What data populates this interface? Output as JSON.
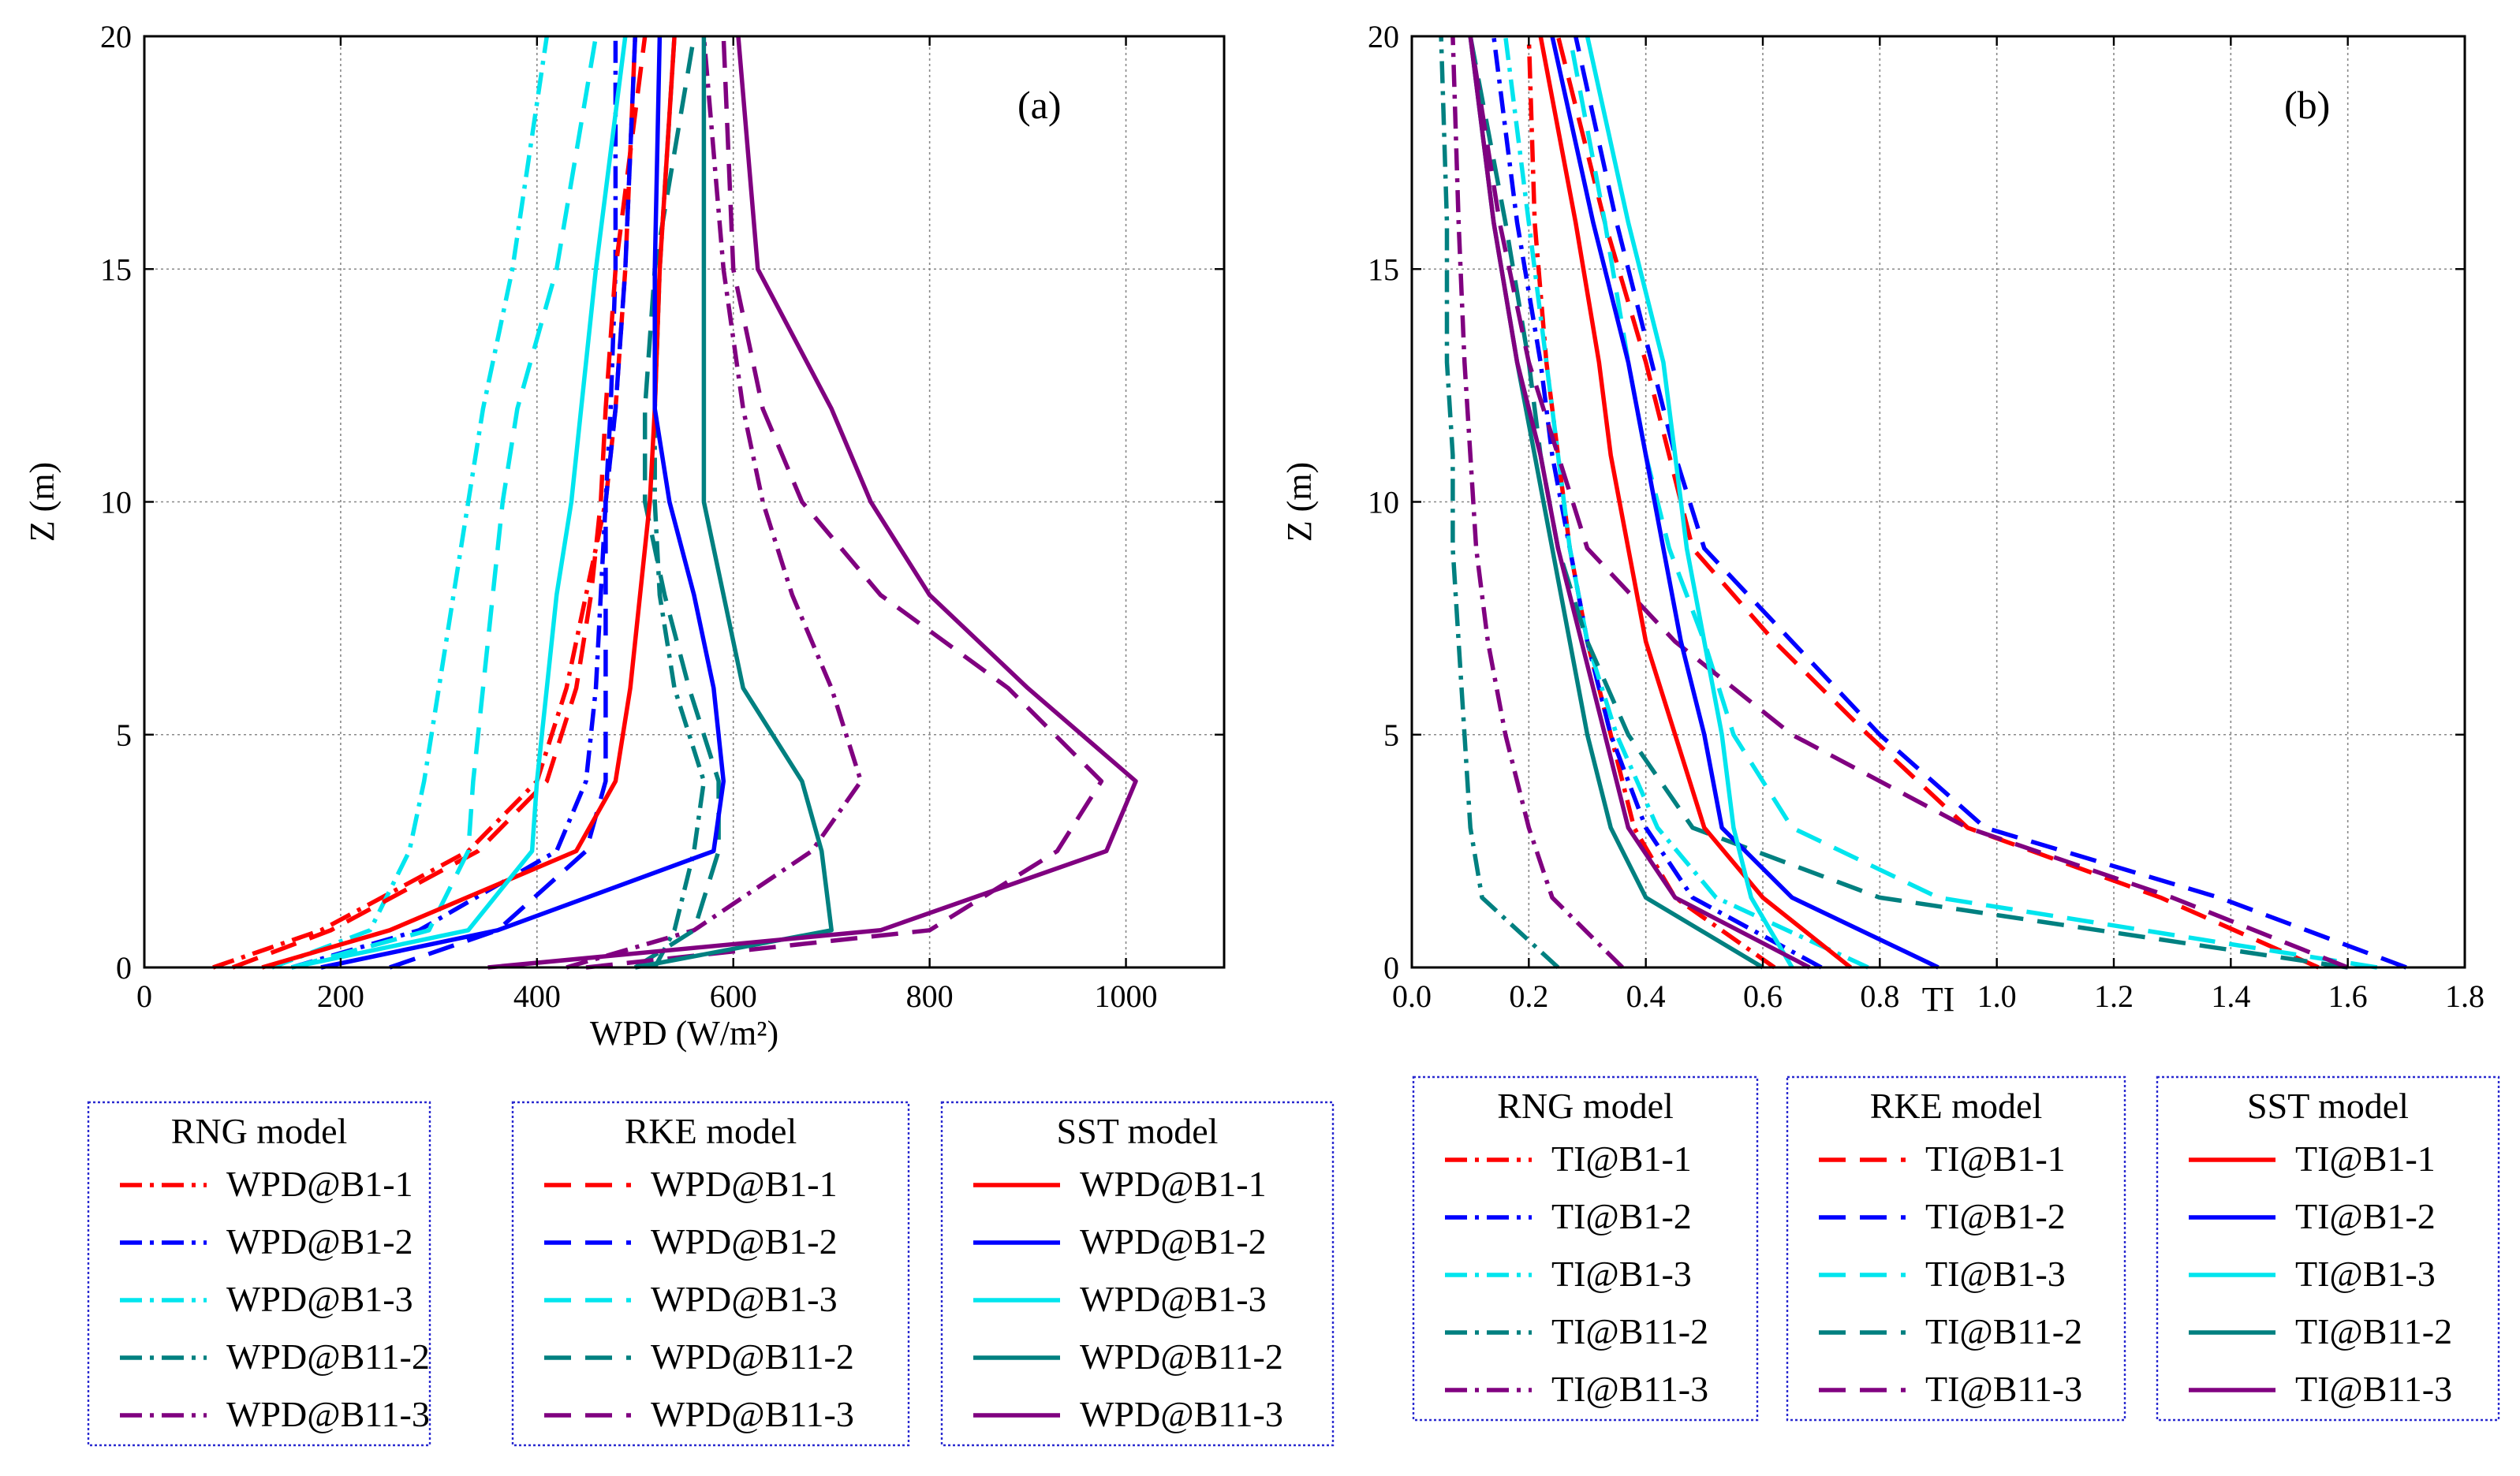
{
  "chart_data": [
    {
      "type": "line",
      "panel_label": "(a)",
      "xlabel": "WPD (W/m²)",
      "ylabel": "Z (m)",
      "xlim": [
        0,
        1100
      ],
      "ylim": [
        0,
        20
      ],
      "xticks": [
        0,
        200,
        400,
        600,
        800,
        1000
      ],
      "yticks": [
        0,
        5,
        10,
        15,
        20
      ],
      "xtick_labels": [
        "0",
        "200",
        "400",
        "600",
        "800",
        "1000"
      ],
      "ytick_labels": [
        "0",
        "5",
        "10",
        "15",
        "20"
      ],
      "grid": true,
      "legend_groups": [
        {
          "title": "RNG model",
          "style": "dashdot",
          "entries": [
            "WPD@B1-1",
            "WPD@B1-2",
            "WPD@B1-3",
            "WPD@B11-2",
            "WPD@B11-3"
          ]
        },
        {
          "title": "RKE model",
          "style": "dash",
          "entries": [
            "WPD@B1-1",
            "WPD@B1-2",
            "WPD@B1-3",
            "WPD@B11-2",
            "WPD@B11-3"
          ]
        },
        {
          "title": "SST model",
          "style": "solid",
          "entries": [
            "WPD@B1-1",
            "WPD@B1-2",
            "WPD@B1-3",
            "WPD@B11-2",
            "WPD@B11-3"
          ]
        }
      ],
      "series": [
        {
          "name": "WPD@B1-1",
          "model": "RNG",
          "color": "#ff0000",
          "style": "dashdot",
          "x": [
            70,
            180,
            330,
            400,
            430,
            450,
            470,
            480,
            490,
            500
          ],
          "z": [
            0,
            0.8,
            2.5,
            4,
            6,
            8,
            10,
            12,
            15,
            20
          ]
        },
        {
          "name": "WPD@B1-2",
          "model": "RNG",
          "color": "#0000ff",
          "style": "dashdot",
          "x": [
            150,
            280,
            420,
            450,
            460,
            465,
            470,
            475,
            480,
            480
          ],
          "z": [
            0,
            0.8,
            2.5,
            4,
            6,
            8,
            10,
            12,
            15,
            20
          ]
        },
        {
          "name": "WPD@B1-3",
          "model": "RNG",
          "color": "#00e5ee",
          "style": "dashdot",
          "x": [
            130,
            230,
            270,
            285,
            300,
            315,
            330,
            345,
            375,
            410
          ],
          "z": [
            0,
            0.8,
            2.5,
            4,
            6,
            8,
            10,
            12,
            15,
            20
          ]
        },
        {
          "name": "WPD@B11-2",
          "model": "RNG",
          "color": "#008080",
          "style": "dashdot",
          "x": [
            520,
            540,
            560,
            570,
            540,
            525,
            520,
            520,
            525,
            540
          ],
          "z": [
            0,
            0.8,
            2.5,
            4,
            6,
            8,
            10,
            12,
            15,
            20
          ]
        },
        {
          "name": "WPD@B11-3",
          "model": "RNG",
          "color": "#800080",
          "style": "dashdot",
          "x": [
            430,
            560,
            680,
            730,
            700,
            660,
            630,
            610,
            590,
            570
          ],
          "z": [
            0,
            0.8,
            2.5,
            4,
            6,
            8,
            10,
            12,
            15,
            20
          ]
        },
        {
          "name": "WPD@B1-1",
          "model": "RKE",
          "color": "#ff0000",
          "style": "dash",
          "x": [
            90,
            190,
            340,
            410,
            440,
            455,
            465,
            470,
            480,
            510
          ],
          "z": [
            0,
            0.8,
            2.5,
            4,
            6,
            8,
            10,
            12,
            15,
            20
          ]
        },
        {
          "name": "WPD@B1-2",
          "model": "RKE",
          "color": "#0000ff",
          "style": "dash",
          "x": [
            250,
            360,
            450,
            470,
            470,
            470,
            470,
            480,
            490,
            500
          ],
          "z": [
            0,
            0.8,
            2.5,
            4,
            6,
            8,
            10,
            12,
            15,
            20
          ]
        },
        {
          "name": "WPD@B1-3",
          "model": "RKE",
          "color": "#00e5ee",
          "style": "dash",
          "x": [
            150,
            290,
            330,
            335,
            345,
            355,
            365,
            380,
            420,
            460
          ],
          "z": [
            0,
            0.8,
            2.5,
            4,
            6,
            8,
            10,
            12,
            15,
            20
          ]
        },
        {
          "name": "WPD@B11-2",
          "model": "RKE",
          "color": "#008080",
          "style": "dash",
          "x": [
            500,
            560,
            585,
            585,
            555,
            530,
            510,
            510,
            520,
            560
          ],
          "z": [
            0,
            0.8,
            2.5,
            4,
            6,
            8,
            10,
            12,
            15,
            20
          ]
        },
        {
          "name": "WPD@B11-3",
          "model": "RKE",
          "color": "#800080",
          "style": "dash",
          "x": [
            450,
            800,
            930,
            975,
            880,
            750,
            670,
            630,
            600,
            590
          ],
          "z": [
            0,
            0.8,
            2.5,
            4,
            6,
            8,
            10,
            12,
            15,
            20
          ]
        },
        {
          "name": "WPD@B1-1",
          "model": "SST",
          "color": "#ff0000",
          "style": "solid",
          "x": [
            120,
            250,
            440,
            480,
            495,
            505,
            515,
            520,
            525,
            540
          ],
          "z": [
            0,
            0.8,
            2.5,
            4,
            6,
            8,
            10,
            12,
            15,
            20
          ]
        },
        {
          "name": "WPD@B1-2",
          "model": "SST",
          "color": "#0000ff",
          "style": "solid",
          "x": [
            180,
            360,
            580,
            590,
            580,
            560,
            535,
            520,
            520,
            525
          ],
          "z": [
            0,
            0.8,
            2.5,
            4,
            6,
            8,
            10,
            12,
            15,
            20
          ]
        },
        {
          "name": "WPD@B1-3",
          "model": "SST",
          "color": "#00e5ee",
          "style": "solid",
          "x": [
            150,
            330,
            395,
            400,
            410,
            420,
            435,
            445,
            460,
            490
          ],
          "z": [
            0,
            0.8,
            2.5,
            4,
            6,
            8,
            10,
            12,
            15,
            20
          ]
        },
        {
          "name": "WPD@B11-2",
          "model": "SST",
          "color": "#008080",
          "style": "solid",
          "x": [
            500,
            700,
            690,
            670,
            610,
            590,
            570,
            570,
            570,
            570
          ],
          "z": [
            0,
            0.8,
            2.5,
            4,
            6,
            8,
            10,
            12,
            15,
            20
          ]
        },
        {
          "name": "WPD@B11-3",
          "model": "SST",
          "color": "#800080",
          "style": "solid",
          "x": [
            350,
            750,
            980,
            1010,
            900,
            800,
            740,
            700,
            625,
            605
          ],
          "z": [
            0,
            0.8,
            2.5,
            4,
            6,
            8,
            10,
            12,
            15,
            20
          ]
        }
      ]
    },
    {
      "type": "line",
      "panel_label": "(b)",
      "xlabel": "TI",
      "ylabel": "Z (m)",
      "xlim": [
        0,
        1.8
      ],
      "ylim": [
        0,
        20
      ],
      "xticks": [
        0,
        0.2,
        0.4,
        0.6,
        0.8,
        1.0,
        1.2,
        1.4,
        1.6,
        1.8
      ],
      "yticks": [
        0,
        5,
        10,
        15,
        20
      ],
      "xtick_labels": [
        "0.0",
        "0.2",
        "0.4",
        "0.6",
        "0.8",
        "1.0",
        "1.2",
        "1.4",
        "1.6",
        "1.8"
      ],
      "ytick_labels": [
        "0",
        "5",
        "10",
        "15",
        "20"
      ],
      "grid": true,
      "legend_groups": [
        {
          "title": "RNG model",
          "style": "dashdot",
          "entries": [
            "TI@B1-1",
            "TI@B1-2",
            "TI@B1-3",
            "TI@B11-2",
            "TI@B11-3"
          ]
        },
        {
          "title": "RKE model",
          "style": "dash",
          "entries": [
            "TI@B1-1",
            "TI@B1-2",
            "TI@B1-3",
            "TI@B11-2",
            "TI@B11-3"
          ]
        },
        {
          "title": "SST model",
          "style": "solid",
          "entries": [
            "TI@B1-1",
            "TI@B1-2",
            "TI@B1-3",
            "TI@B11-2",
            "TI@B11-3"
          ]
        }
      ],
      "series": [
        {
          "name": "TI@B1-1",
          "model": "RNG",
          "color": "#ff0000",
          "style": "dashdot",
          "x": [
            0.62,
            0.45,
            0.38,
            0.34,
            0.3,
            0.27,
            0.25,
            0.23,
            0.21,
            0.2
          ],
          "z": [
            0,
            1.5,
            3,
            5,
            7,
            9,
            11,
            13,
            16,
            20
          ]
        },
        {
          "name": "TI@B1-2",
          "model": "RNG",
          "color": "#0000ff",
          "style": "dashdot",
          "x": [
            0.7,
            0.48,
            0.4,
            0.34,
            0.3,
            0.27,
            0.24,
            0.22,
            0.18,
            0.14
          ],
          "z": [
            0,
            1.5,
            3,
            5,
            7,
            9,
            11,
            13,
            16,
            20
          ]
        },
        {
          "name": "TI@B1-3",
          "model": "RNG",
          "color": "#00e5ee",
          "style": "dashdot",
          "x": [
            0.78,
            0.52,
            0.42,
            0.35,
            0.3,
            0.27,
            0.25,
            0.23,
            0.2,
            0.16
          ],
          "z": [
            0,
            1.5,
            3,
            5,
            7,
            9,
            11,
            13,
            16,
            20
          ]
        },
        {
          "name": "TI@B11-2",
          "model": "RNG",
          "color": "#008080",
          "style": "dashdot",
          "x": [
            0.25,
            0.12,
            0.1,
            0.09,
            0.08,
            0.07,
            0.07,
            0.06,
            0.06,
            0.05
          ],
          "z": [
            0,
            1.5,
            3,
            5,
            7,
            9,
            11,
            13,
            16,
            20
          ]
        },
        {
          "name": "TI@B11-3",
          "model": "RNG",
          "color": "#800080",
          "style": "dashdot",
          "x": [
            0.36,
            0.24,
            0.2,
            0.16,
            0.13,
            0.11,
            0.1,
            0.09,
            0.08,
            0.07
          ],
          "z": [
            0,
            1.5,
            3,
            5,
            7,
            9,
            11,
            13,
            16,
            20
          ]
        },
        {
          "name": "TI@B1-1",
          "model": "RKE",
          "color": "#ff0000",
          "style": "dash",
          "x": [
            1.55,
            1.28,
            0.95,
            0.78,
            0.62,
            0.48,
            0.44,
            0.4,
            0.33,
            0.25
          ],
          "z": [
            0,
            1.5,
            3,
            5,
            7,
            9,
            11,
            13,
            16,
            20
          ]
        },
        {
          "name": "TI@B1-2",
          "model": "RKE",
          "color": "#0000ff",
          "style": "dash",
          "x": [
            1.7,
            1.38,
            0.98,
            0.8,
            0.65,
            0.5,
            0.45,
            0.41,
            0.35,
            0.28
          ],
          "z": [
            0,
            1.5,
            3,
            5,
            7,
            9,
            11,
            13,
            16,
            20
          ]
        },
        {
          "name": "TI@B1-3",
          "model": "RKE",
          "color": "#00e5ee",
          "style": "dash",
          "x": [
            1.65,
            0.9,
            0.65,
            0.55,
            0.5,
            0.44,
            0.4,
            0.37,
            0.33,
            0.27
          ],
          "z": [
            0,
            1.5,
            3,
            5,
            7,
            9,
            11,
            13,
            16,
            20
          ]
        },
        {
          "name": "TI@B11-2",
          "model": "RKE",
          "color": "#008080",
          "style": "dash",
          "x": [
            1.6,
            0.8,
            0.48,
            0.37,
            0.3,
            0.25,
            0.22,
            0.2,
            0.16,
            0.1
          ],
          "z": [
            0,
            1.5,
            3,
            5,
            7,
            9,
            11,
            13,
            16,
            20
          ]
        },
        {
          "name": "TI@B11-3",
          "model": "RKE",
          "color": "#800080",
          "style": "dash",
          "x": [
            1.6,
            1.3,
            0.95,
            0.65,
            0.45,
            0.3,
            0.25,
            0.2,
            0.15,
            0.1
          ],
          "z": [
            0,
            1.5,
            3,
            5,
            7,
            9,
            11,
            13,
            16,
            20
          ]
        },
        {
          "name": "TI@B1-1",
          "model": "SST",
          "color": "#ff0000",
          "style": "solid",
          "x": [
            0.75,
            0.6,
            0.5,
            0.45,
            0.4,
            0.37,
            0.34,
            0.32,
            0.28,
            0.22
          ],
          "z": [
            0,
            1.5,
            3,
            5,
            7,
            9,
            11,
            13,
            16,
            20
          ]
        },
        {
          "name": "TI@B1-2",
          "model": "SST",
          "color": "#0000ff",
          "style": "solid",
          "x": [
            0.9,
            0.65,
            0.53,
            0.5,
            0.46,
            0.43,
            0.4,
            0.37,
            0.31,
            0.24
          ],
          "z": [
            0,
            1.5,
            3,
            5,
            7,
            9,
            11,
            13,
            16,
            20
          ]
        },
        {
          "name": "TI@B1-3",
          "model": "SST",
          "color": "#00e5ee",
          "style": "solid",
          "x": [
            0.65,
            0.58,
            0.55,
            0.53,
            0.5,
            0.47,
            0.45,
            0.43,
            0.37,
            0.3
          ],
          "z": [
            0,
            1.5,
            3,
            5,
            7,
            9,
            11,
            13,
            16,
            20
          ]
        },
        {
          "name": "TI@B11-2",
          "model": "SST",
          "color": "#008080",
          "style": "solid",
          "x": [
            0.6,
            0.4,
            0.34,
            0.3,
            0.27,
            0.24,
            0.21,
            0.18,
            0.14,
            0.1
          ],
          "z": [
            0,
            1.5,
            3,
            5,
            7,
            9,
            11,
            13,
            16,
            20
          ]
        },
        {
          "name": "TI@B11-3",
          "model": "SST",
          "color": "#800080",
          "style": "solid",
          "x": [
            0.68,
            0.45,
            0.37,
            0.33,
            0.29,
            0.25,
            0.22,
            0.18,
            0.14,
            0.1
          ],
          "z": [
            0,
            1.5,
            3,
            5,
            7,
            9,
            11,
            13,
            16,
            20
          ]
        }
      ]
    }
  ]
}
